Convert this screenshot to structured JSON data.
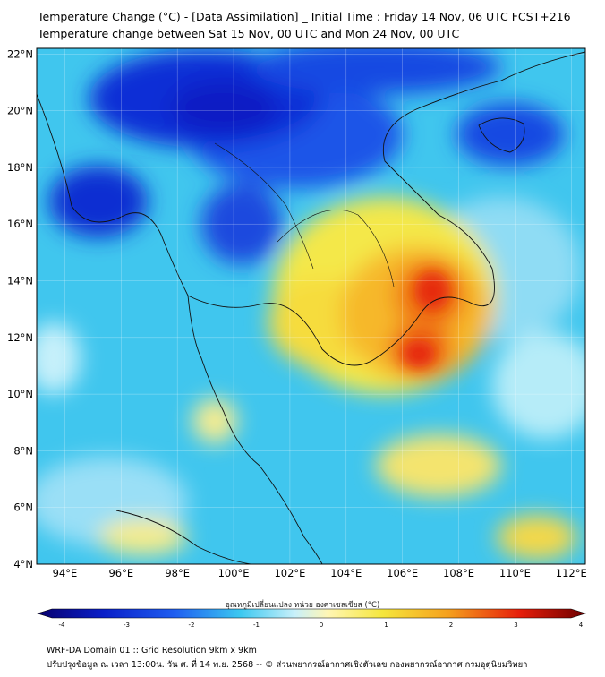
{
  "title": {
    "line1": "Temperature Change (°C) - [Data Assimilation] _ Initial Time : Friday 14 Nov, 06 UTC FCST+216",
    "line2": "Temperature change between Sat 15 Nov, 00 UTC and Mon 24 Nov, 00 UTC"
  },
  "axes": {
    "lat_labels": [
      "22°N",
      "20°N",
      "18°N",
      "16°N",
      "14°N",
      "12°N",
      "10°N",
      "8°N",
      "6°N",
      "4°N"
    ],
    "lon_labels": [
      "94°E",
      "96°E",
      "98°E",
      "100°E",
      "102°E",
      "104°E",
      "106°E",
      "108°E",
      "110°E",
      "112°E"
    ],
    "lat_values": [
      22,
      20,
      18,
      16,
      14,
      12,
      10,
      8,
      6,
      4
    ],
    "lon_values": [
      94,
      96,
      98,
      100,
      102,
      104,
      106,
      108,
      110,
      112
    ]
  },
  "colorbar": {
    "label": "อุณหภูมิเปลี่ยนแปลง หน่วย องศาเซลเซียส (°C)",
    "ticks": [
      "-4",
      "-3",
      "-2",
      "-1",
      "0",
      "1",
      "2",
      "3",
      "4"
    ],
    "min": -4,
    "max": 4
  },
  "footer": {
    "line1": "WRF-DA Domain 01 :: Grid Resolution 9km x 9km",
    "line2": "ปรับปรุงข้อมูล ณ เวลา 13:00น. วัน ศ. ที่ 14 พ.ย. 2568 -- © ส่วนพยากรณ์อากาศเชิงตัวเลข กองพยากรณ์อากาศ กรมอุตุนิยมวิทยา"
  },
  "colors": {
    "deep_blue": "#0a1fc8",
    "blue": "#1f5ef0",
    "light_blue": "#3cc8f0",
    "pale_cyan": "#c8f0fa",
    "yellow": "#f5e63c",
    "orange": "#f5a01e",
    "red": "#e61e0a"
  }
}
